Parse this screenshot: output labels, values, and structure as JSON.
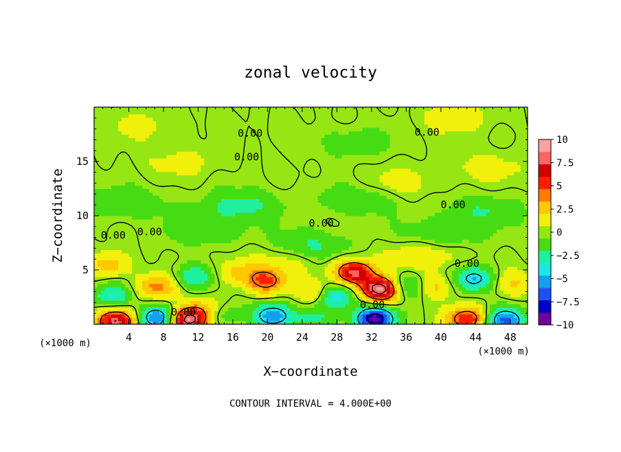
{
  "chart_data": {
    "type": "heatmap",
    "title": "zonal velocity",
    "xlabel": "X−coordinate",
    "ylabel": "Z−coordinate",
    "x_unit_left": "(×1000 m)",
    "x_unit_right": "(×1000 m)",
    "footer": "CONTOUR INTERVAL = 4.000E+00",
    "xlim": [
      0,
      50
    ],
    "ylim": [
      0,
      20
    ],
    "x_ticks": [
      4,
      8,
      12,
      16,
      20,
      24,
      28,
      32,
      36,
      40,
      44,
      48
    ],
    "x_tick_labels": [
      "4",
      "8",
      "12",
      "16",
      "20",
      "24",
      "28",
      "32",
      "36",
      "40",
      "44",
      "48"
    ],
    "y_ticks": [
      5,
      10,
      15
    ],
    "y_tick_labels": [
      "5",
      "10",
      "15"
    ],
    "colorbar": {
      "min": -10,
      "max": 10,
      "ticks": [
        10,
        7.5,
        5,
        2.5,
        0,
        -2.5,
        -5,
        -7.5,
        -10
      ],
      "tick_labels": [
        "10",
        "7.5",
        "5",
        "2.5",
        "0",
        "−2.5",
        "−5",
        "−7.5",
        "−10"
      ],
      "colors": [
        "#7000a0",
        "#0000c8",
        "#1e50f0",
        "#14a0f0",
        "#1ee6e6",
        "#1ef0a0",
        "#46dc14",
        "#96e614",
        "#f0f00a",
        "#ffc800",
        "#ff7800",
        "#ff1e00",
        "#d20000",
        "#ff6464",
        "#ffa0a0"
      ]
    },
    "contour_labels": [
      {
        "text": "0.00",
        "x": 18.0,
        "y": 17.6
      },
      {
        "text": "0.00",
        "x": 38.4,
        "y": 17.7
      },
      {
        "text": "0.00",
        "x": 17.6,
        "y": 15.4
      },
      {
        "text": "0.00",
        "x": 41.4,
        "y": 11.0
      },
      {
        "text": "0.00",
        "x": 26.2,
        "y": 9.3
      },
      {
        "text": "0.00",
        "x": 2.2,
        "y": 8.2
      },
      {
        "text": "0.00",
        "x": 6.4,
        "y": 8.5
      },
      {
        "text": "0.00",
        "x": 43.0,
        "y": 5.6
      },
      {
        "text": "0.00",
        "x": 10.3,
        "y": 1.1
      },
      {
        "text": "0.00",
        "x": 32.1,
        "y": 1.8
      }
    ],
    "features": [
      {
        "x": 33.0,
        "z": 3.2,
        "u": 9.5
      },
      {
        "x": 30.0,
        "z": 4.8,
        "u": 8.0
      },
      {
        "x": 10.8,
        "z": 0.4,
        "u": 9.0
      },
      {
        "x": 2.6,
        "z": 0.3,
        "u": 8.0
      },
      {
        "x": 43.0,
        "z": 0.5,
        "u": 6.0
      },
      {
        "x": 19.8,
        "z": 4.0,
        "u": 5.0
      },
      {
        "x": 7.3,
        "z": 3.5,
        "u": 4.0
      },
      {
        "x": 1.8,
        "z": 5.5,
        "u": 3.0
      },
      {
        "x": 13.0,
        "z": 1.4,
        "u": 3.0
      },
      {
        "x": 16.5,
        "z": 4.8,
        "u": 2.5
      },
      {
        "x": 25.5,
        "z": 3.0,
        "u": 2.5
      },
      {
        "x": 39.5,
        "z": 3.5,
        "u": 2.5
      },
      {
        "x": 48.5,
        "z": 3.8,
        "u": 2.0
      },
      {
        "x": 38.0,
        "z": 6.5,
        "u": 2.0
      },
      {
        "x": 22.0,
        "z": 6.0,
        "u": 1.5
      },
      {
        "x": 32.4,
        "z": 0.5,
        "u": -9.5
      },
      {
        "x": 7.2,
        "z": 0.6,
        "u": -6.5
      },
      {
        "x": 20.5,
        "z": 0.8,
        "u": -6.0
      },
      {
        "x": 47.5,
        "z": 0.4,
        "u": -6.5
      },
      {
        "x": 43.8,
        "z": 4.2,
        "u": -5.0
      },
      {
        "x": 28.0,
        "z": 2.6,
        "u": -4.5
      },
      {
        "x": 2.0,
        "z": 2.6,
        "u": -3.5
      },
      {
        "x": 11.5,
        "z": 4.4,
        "u": -3.5
      },
      {
        "x": 36.0,
        "z": 3.5,
        "u": -3.0
      },
      {
        "x": 14.5,
        "z": 1.0,
        "u": -2.5
      },
      {
        "x": 25.5,
        "z": 0.6,
        "u": -2.5
      },
      {
        "x": 3.5,
        "z": 11.2,
        "u": -2.0
      },
      {
        "x": 17.0,
        "z": 11.0,
        "u": -2.5
      },
      {
        "x": 30.5,
        "z": 11.5,
        "u": -2.0
      },
      {
        "x": 13.0,
        "z": 8.8,
        "u": -2.0
      },
      {
        "x": 25.0,
        "z": 7.2,
        "u": -2.5
      },
      {
        "x": 40.0,
        "z": 8.2,
        "u": -2.0
      },
      {
        "x": 45.0,
        "z": 10.5,
        "u": -2.0
      },
      {
        "x": 10.0,
        "z": 15.0,
        "u": 1.0
      },
      {
        "x": 30.0,
        "z": 16.8,
        "u": -1.5
      },
      {
        "x": 45.0,
        "z": 14.5,
        "u": 1.2
      },
      {
        "x": 6.0,
        "z": 18.3,
        "u": 1.0
      },
      {
        "x": 42.0,
        "z": 19.0,
        "u": 1.2
      },
      {
        "x": 35.0,
        "z": 13.0,
        "u": 1.2
      }
    ]
  }
}
